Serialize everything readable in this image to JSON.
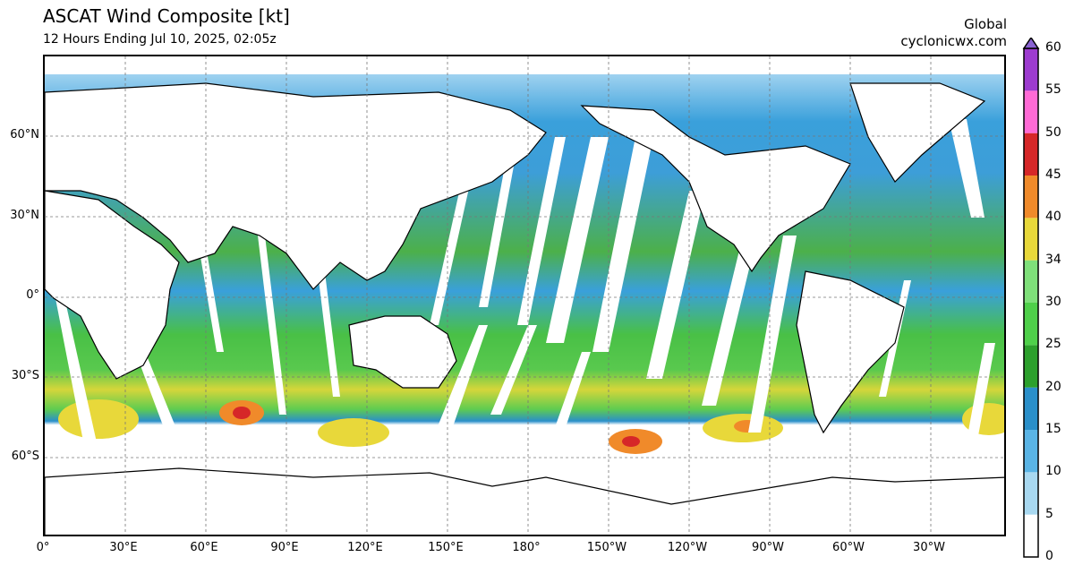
{
  "header": {
    "title": "ASCAT Wind Composite [kt]",
    "subtitle": "12 Hours Ending Jul 10, 2025, 02:05z",
    "region": "Global",
    "source": "cyclonicwx.com"
  },
  "axes": {
    "lat_labels": [
      "60°N",
      "30°N",
      "0°",
      "30°S",
      "60°S"
    ],
    "lon_labels": [
      "0°",
      "30°E",
      "60°E",
      "90°E",
      "120°E",
      "150°E",
      "180°",
      "150°W",
      "120°W",
      "90°W",
      "60°W",
      "30°W"
    ]
  },
  "colorbar": {
    "levels": [
      "0",
      "5",
      "10",
      "15",
      "20",
      "25",
      "30",
      "34",
      "40",
      "45",
      "50",
      "55",
      "60"
    ],
    "colors": [
      "#ffffff",
      "#a8d8f0",
      "#5ab4e5",
      "#2a8fc9",
      "#2ca02c",
      "#4fd04a",
      "#7fe07a",
      "#e8d83a",
      "#f08a2a",
      "#d62728",
      "#ff6ad5",
      "#9d3bcf",
      "#8a63d2"
    ]
  },
  "legend_colors": {
    "land": "#ffffff",
    "calm": "#5ab4e5",
    "moderate": "#2a8fc9",
    "strong": "#4fd04a",
    "gale": "#e8d83a",
    "storm": "#d62728"
  }
}
